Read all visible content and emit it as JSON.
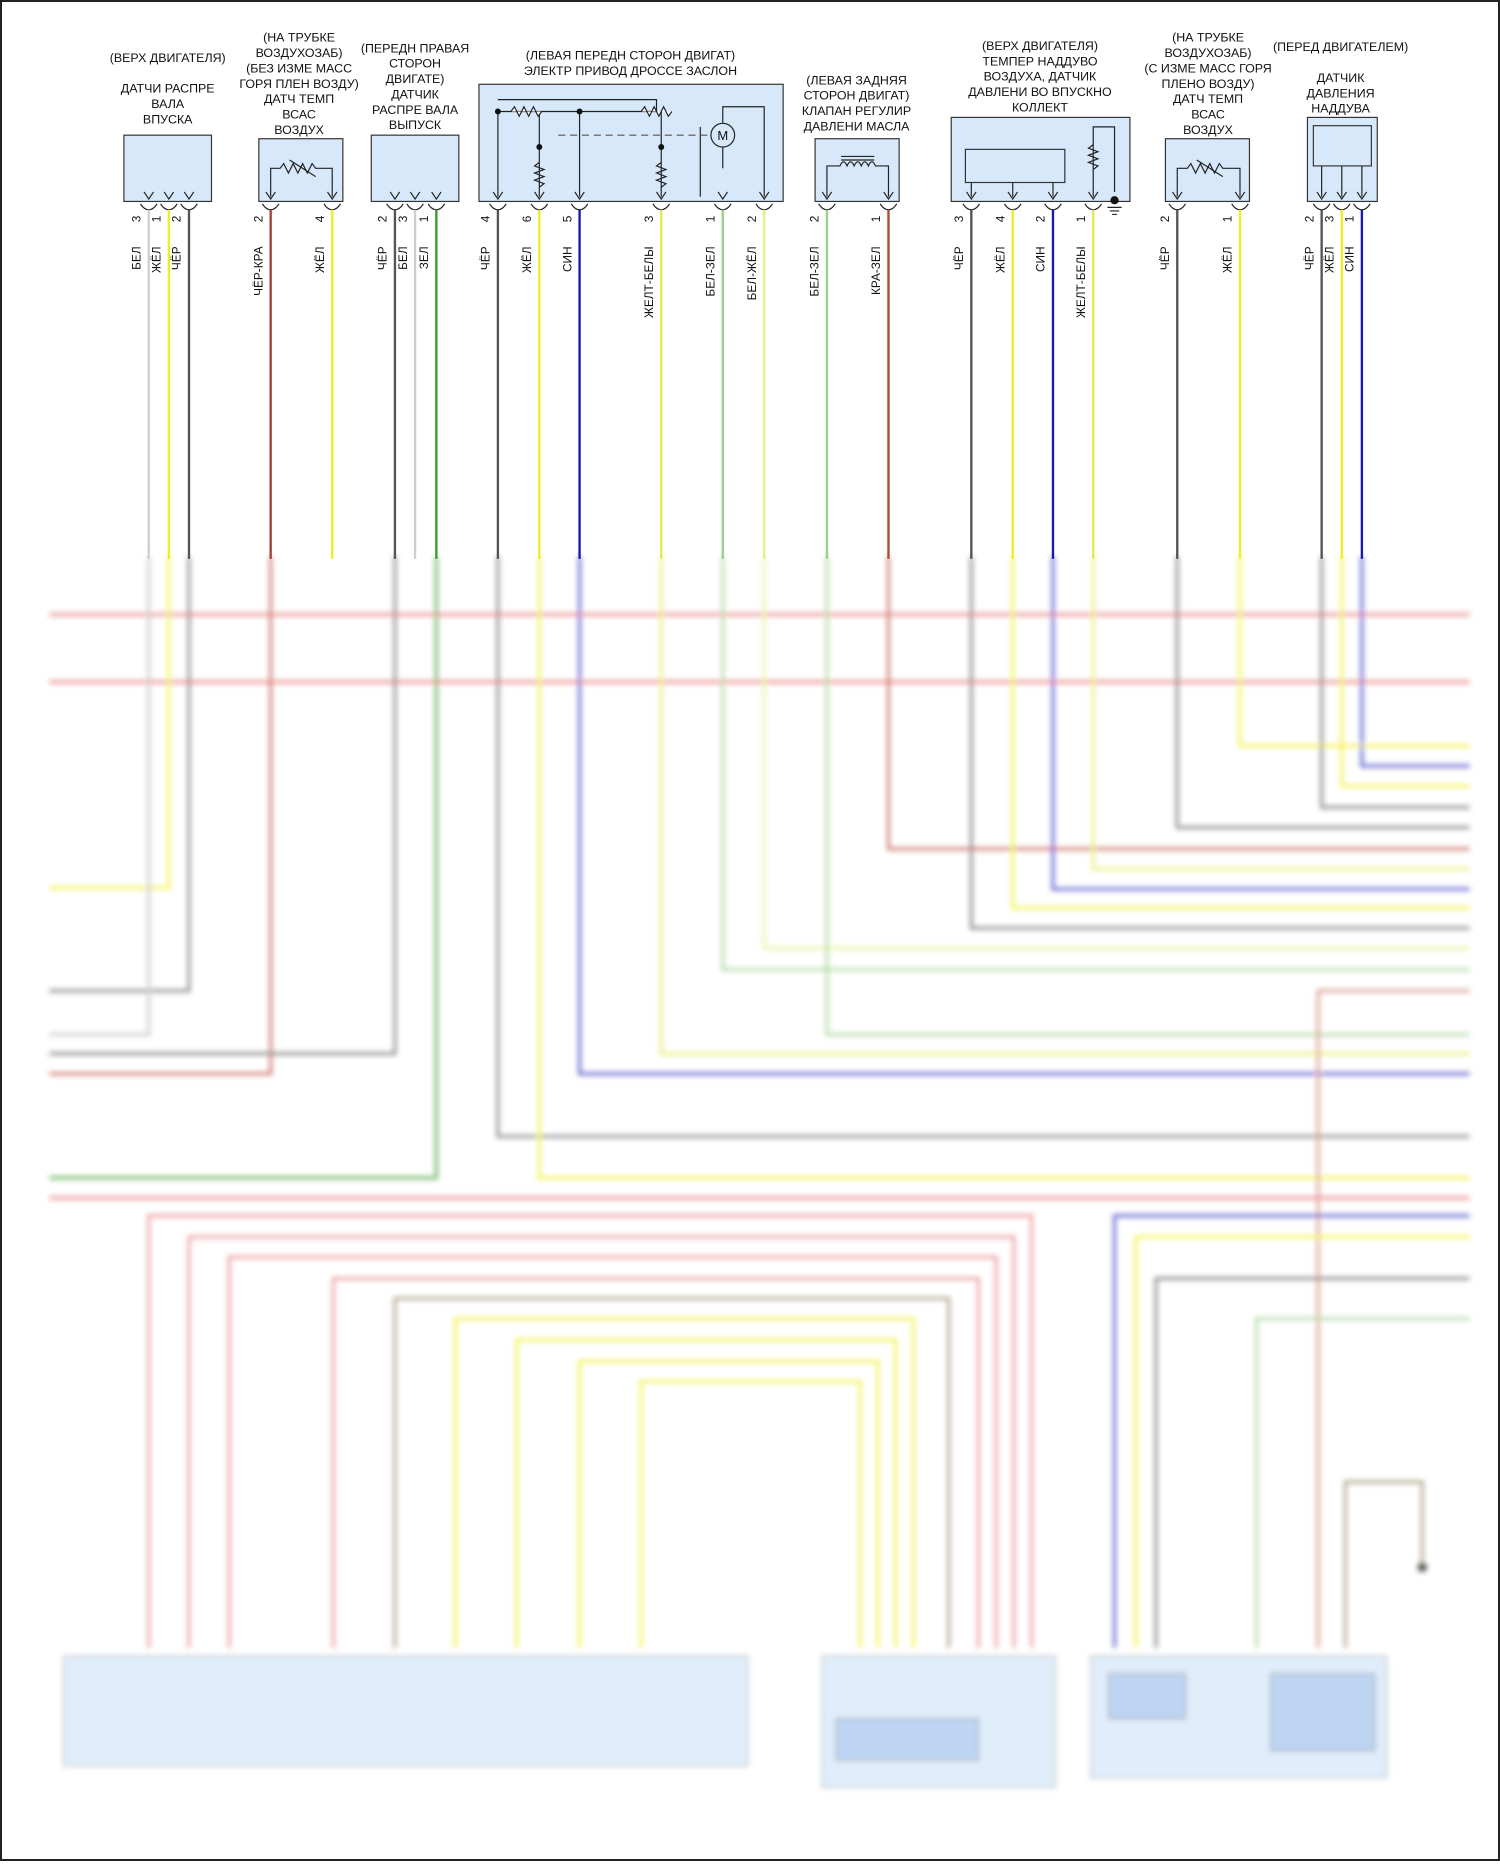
{
  "diagram": {
    "components": [
      {
        "id": "intake-camshaft-sensor",
        "title": [
          "(ВЕРХ ДВИГАТЕЛЯ)",
          "",
          "ДАТЧИ РАСПРЕ",
          "ВАЛА",
          "ВПУСКА"
        ],
        "pins": [
          {
            "num": "3",
            "wire": "БЕЛ",
            "color": "#cfcfcf"
          },
          {
            "num": "1",
            "wire": "ЖЁЛ",
            "color": "#eeee22"
          },
          {
            "num": "2",
            "wire": "ЧЁР",
            "color": "#555555"
          }
        ]
      },
      {
        "id": "intake-air-temp-sensor-no-maf",
        "title": [
          "(НА ТРУБКЕ",
          "ВОЗДУХОЗАБ)",
          "(БЕЗ ИЗМЕ МАСС",
          "ГОРЯ ПЛЕН ВОЗДУ)",
          "ДАТЧ ТЕМП",
          "ВСАС",
          "ВОЗДУХ"
        ],
        "pins": [
          {
            "num": "2",
            "wire": "ЧЁР-КРА",
            "color": "#a04438"
          },
          {
            "num": "4",
            "wire": "ЖЁЛ",
            "color": "#eeee22"
          }
        ]
      },
      {
        "id": "exhaust-camshaft-sensor",
        "title": [
          "(ПЕРЕДН ПРАВАЯ",
          "СТОРОН",
          "ДВИГАТЕ)",
          "ДАТЧИК",
          "РАСПРЕ ВАЛА",
          "ВЫПУСК"
        ],
        "pins": [
          {
            "num": "2",
            "wire": "ЧЁР",
            "color": "#555555"
          },
          {
            "num": "3",
            "wire": "БЕЛ",
            "color": "#cfcfcf"
          },
          {
            "num": "1",
            "wire": "ЗЕЛ",
            "color": "#3a9a2a"
          }
        ]
      },
      {
        "id": "electric-throttle",
        "title": [
          "(ЛЕВАЯ ПЕРЕДН СТОРОН ДВИГАТ)",
          "ЭЛЕКТР ПРИВОД ДРОССЕ ЗАСЛОН"
        ],
        "pins": [
          {
            "num": "4",
            "wire": "ЧЁР",
            "color": "#555555"
          },
          {
            "num": "6",
            "wire": "ЖЁЛ",
            "color": "#eeee22"
          },
          {
            "num": "5",
            "wire": "СИН",
            "color": "#1a1aa8"
          },
          {
            "num": "3",
            "wire": "ЖЕЛТ-БЕЛЫ",
            "color": "#e6e65a"
          },
          {
            "num": "1",
            "wire": "БЕЛ-ЗЕЛ",
            "color": "#9ccf8a"
          },
          {
            "num": "2",
            "wire": "БЕЛ-ЖЁЛ",
            "color": "#e4f08a"
          }
        ],
        "motor_label": "M"
      },
      {
        "id": "oil-pressure-control-valve",
        "title": [
          "(ЛЕВАЯ ЗАДНЯЯ",
          "СТОРОН ДВИГАТ)",
          "КЛАПАН РЕГУЛИР",
          "ДАВЛЕНИ МАСЛА"
        ],
        "pins": [
          {
            "num": "2",
            "wire": "БЕЛ-ЗЕЛ",
            "color": "#9ccf8a"
          },
          {
            "num": "1",
            "wire": "КРА-ЗЕЛ",
            "color": "#b04a28"
          }
        ]
      },
      {
        "id": "map-sensor",
        "title": [
          "(ВЕРХ ДВИГАТЕЛЯ)",
          "ТЕМПЕР НАДДУВО",
          "ВОЗДУХА, ДАТЧИК",
          "ДАВЛЕНИ ВО ВПУСКНО",
          "КОЛЛЕКТ"
        ],
        "pins": [
          {
            "num": "3",
            "wire": "ЧЁР",
            "color": "#555555"
          },
          {
            "num": "4",
            "wire": "ЖЁЛ",
            "color": "#eeee22"
          },
          {
            "num": "2",
            "wire": "СИН",
            "color": "#1a1aa8"
          },
          {
            "num": "1",
            "wire": "ЖЕЛТ-БЕЛЫ",
            "color": "#e6e65a"
          }
        ]
      },
      {
        "id": "intake-air-temp-sensor-maf",
        "title": [
          "(НА ТРУБКЕ",
          "ВОЗДУХОЗАБ)",
          "(С ИЗМЕ МАСС ГОРЯ",
          "ПЛЕНО ВОЗДУ)",
          "ДАТЧ ТЕМП",
          "ВСАС",
          "ВОЗДУХ"
        ],
        "pins": [
          {
            "num": "2",
            "wire": "ЧЁР",
            "color": "#555555"
          },
          {
            "num": "1",
            "wire": "ЖЁЛ",
            "color": "#eeee22"
          }
        ]
      },
      {
        "id": "boost-pressure-sensor",
        "title": [
          "(ПЕРЕД ДВИГАТЕЛЕМ)",
          "",
          "ДАТЧИК",
          "ДАВЛЕНИЯ",
          "НАДДУВА"
        ],
        "pins": [
          {
            "num": "2",
            "wire": "ЧЁР",
            "color": "#555555"
          },
          {
            "num": "3",
            "wire": "ЖЁЛ",
            "color": "#eeee22"
          },
          {
            "num": "1",
            "wire": "СИН",
            "color": "#1a1aa8"
          }
        ]
      }
    ],
    "colors": {
      "component_fill": "#d6e8fa",
      "bus_red": "#e88080"
    }
  }
}
